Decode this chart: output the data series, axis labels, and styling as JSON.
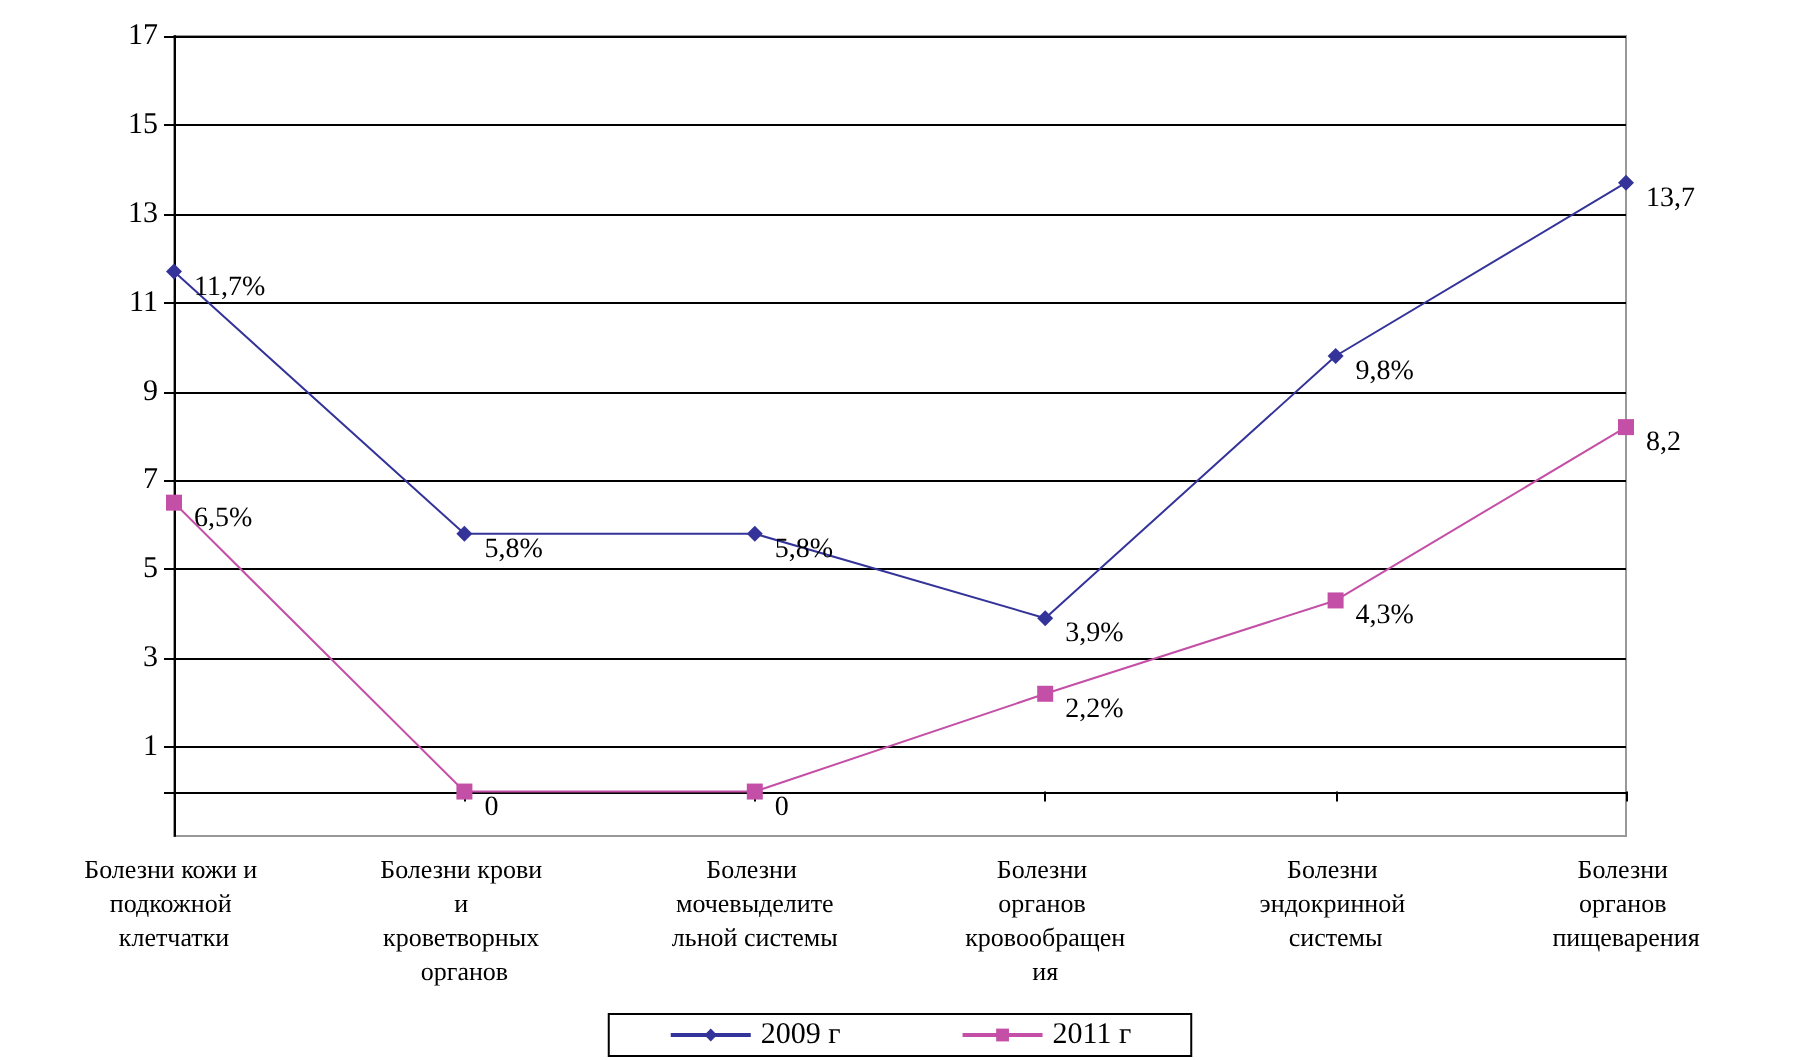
{
  "chart_data": {
    "type": "line",
    "categories": [
      "Болезни кожи и подкожной клетчатки",
      "Болезни крови и кроветворных органов",
      "Болезни мочевыделительной системы",
      "Болезни органов кровообращения",
      "Болезни эндокринной системы",
      "Болезни органов пищеварения"
    ],
    "series": [
      {
        "name": "2009 г",
        "color": "#333399",
        "marker": "diamond",
        "values": [
          11.7,
          5.8,
          5.8,
          3.9,
          9.8,
          13.7
        ],
        "value_labels": [
          "11,7%",
          "5,8%",
          "5,8%",
          "3,9%",
          "9,8%",
          "13,7"
        ]
      },
      {
        "name": "2011 г",
        "color": "#c44fa6",
        "marker": "square",
        "values": [
          6.5,
          0,
          0,
          2.2,
          4.3,
          8.2
        ],
        "value_labels": [
          "6,5%",
          "0",
          "0",
          "2,2%",
          "4,3%",
          "8,2"
        ]
      }
    ],
    "ylim": [
      -1,
      17
    ],
    "yticks": [
      {
        "value": 0,
        "label": null
      },
      1,
      3,
      5,
      7,
      9,
      11,
      13,
      15,
      17
    ],
    "grid": "y",
    "legend": "bottom",
    "line_style": "solid"
  }
}
